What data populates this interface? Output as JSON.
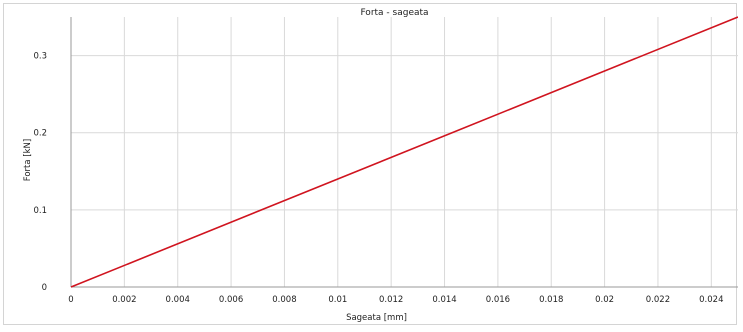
{
  "chart_data": {
    "type": "line",
    "title": "Forta - sageata",
    "xlabel": "Sageata [mm]",
    "ylabel": "Forta [kN]",
    "xlim": [
      0,
      0.025
    ],
    "ylim": [
      0,
      0.35
    ],
    "x_ticks": [
      "0",
      "0.002",
      "0.004",
      "0.006",
      "0.008",
      "0.01",
      "0.012",
      "0.014",
      "0.016",
      "0.018",
      "0.02",
      "0.022",
      "0.024"
    ],
    "x_tick_values": [
      0,
      0.002,
      0.004,
      0.006,
      0.008,
      0.01,
      0.012,
      0.014,
      0.016,
      0.018,
      0.02,
      0.022,
      0.024
    ],
    "y_ticks": [
      "0",
      "0.1",
      "0.2",
      "0.3"
    ],
    "y_tick_values": [
      0,
      0.1,
      0.2,
      0.3
    ],
    "grid": true,
    "legend": false,
    "series": [
      {
        "color": "#d0141f",
        "points": [
          {
            "x": 0,
            "y": 0
          },
          {
            "x": 0.025,
            "y": 0.35
          }
        ]
      }
    ]
  }
}
